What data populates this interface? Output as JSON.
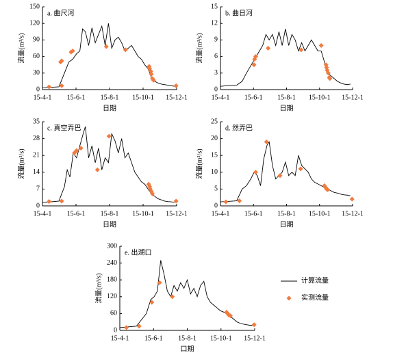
{
  "chart_data": [
    {
      "type": "line",
      "title": "a. 曲尺河",
      "xlabel": "日期",
      "ylabel": "流量(m³/s)",
      "xlim": [
        0,
        244
      ],
      "xticks": [
        {
          "value": 0,
          "label": "15-4-1"
        },
        {
          "value": 61,
          "label": "15-6-1"
        },
        {
          "value": 122,
          "label": "15-8-1"
        },
        {
          "value": 183,
          "label": "15-10-1"
        },
        {
          "value": 244,
          "label": "15-12-1"
        }
      ],
      "ylim": [
        0,
        150
      ],
      "yticks": [
        0,
        30,
        60,
        90,
        120,
        150
      ],
      "series": [
        {
          "type": "line",
          "color": "#000000",
          "x": [
            0,
            12,
            30,
            40,
            48,
            55,
            62,
            68,
            73,
            78,
            84,
            90,
            96,
            102,
            108,
            114,
            120,
            126,
            132,
            138,
            144,
            150,
            156,
            162,
            168,
            174,
            180,
            186,
            192,
            198,
            204,
            210,
            216,
            222,
            228,
            234,
            240
          ],
          "values": [
            3,
            4,
            5,
            30,
            50,
            55,
            65,
            70,
            110,
            105,
            80,
            112,
            85,
            100,
            115,
            80,
            120,
            75,
            90,
            95,
            85,
            70,
            75,
            80,
            70,
            60,
            55,
            45,
            38,
            22,
            15,
            12,
            10,
            9,
            8,
            7,
            6
          ]
        },
        {
          "type": "scatter",
          "color": "#f07b3f",
          "x": [
            12,
            35,
            33,
            35,
            52,
            55,
            116,
            151,
            194,
            195,
            197,
            198,
            200,
            202,
            243
          ],
          "values": [
            5,
            7,
            50,
            52,
            68,
            70,
            78,
            72,
            42,
            38,
            33,
            28,
            20,
            17,
            7
          ]
        }
      ]
    },
    {
      "type": "line",
      "title": "b. 曲日河",
      "xlabel": "日期",
      "ylabel": "流量(m³/s)",
      "xlim": [
        0,
        244
      ],
      "xticks": [
        {
          "value": 0,
          "label": "15-4-1"
        },
        {
          "value": 61,
          "label": "15-6-1"
        },
        {
          "value": 122,
          "label": "15-8-1"
        },
        {
          "value": 183,
          "label": "15-10-1"
        },
        {
          "value": 244,
          "label": "15-12-1"
        }
      ],
      "ylim": [
        0,
        15
      ],
      "yticks": [
        0,
        3,
        6,
        9,
        12,
        15
      ],
      "series": [
        {
          "type": "line",
          "color": "#000000",
          "x": [
            0,
            12,
            30,
            40,
            48,
            60,
            66,
            72,
            78,
            84,
            90,
            96,
            102,
            108,
            114,
            120,
            126,
            132,
            138,
            144,
            150,
            156,
            162,
            168,
            174,
            180,
            186,
            192,
            198,
            204,
            210,
            216,
            222,
            228,
            234,
            240
          ],
          "values": [
            0.6,
            0.7,
            0.8,
            1.5,
            3,
            5,
            6,
            7,
            8,
            10,
            9,
            10,
            8,
            10.5,
            8,
            11,
            8,
            10,
            9,
            7,
            8.5,
            7,
            8,
            9,
            8,
            7,
            7,
            5,
            3,
            2.5,
            2,
            1.5,
            1.2,
            1,
            0.9,
            1
          ]
        },
        {
          "type": "scatter",
          "color": "#f07b3f",
          "x": [
            62,
            63,
            65,
            88,
            149,
            186,
            195,
            196,
            197,
            199,
            201,
            202
          ],
          "values": [
            4.5,
            5.5,
            6,
            7.5,
            7.2,
            8,
            4.5,
            4,
            3.5,
            3,
            2.2,
            2
          ]
        }
      ]
    },
    {
      "type": "line",
      "title": "c. 真空弄巴",
      "xlabel": "日期",
      "ylabel": "流量(m³/s)",
      "xlim": [
        0,
        244
      ],
      "xticks": [
        {
          "value": 0,
          "label": "15-4-1"
        },
        {
          "value": 61,
          "label": "15-6-1"
        },
        {
          "value": 122,
          "label": "15-8-1"
        },
        {
          "value": 183,
          "label": "15-10-1"
        },
        {
          "value": 244,
          "label": "15-12-1"
        }
      ],
      "ylim": [
        0,
        35
      ],
      "yticks": [
        0,
        7,
        14,
        21,
        28,
        35
      ],
      "series": [
        {
          "type": "line",
          "color": "#000000",
          "x": [
            0,
            12,
            30,
            40,
            45,
            50,
            56,
            62,
            68,
            74,
            78,
            84,
            90,
            96,
            102,
            108,
            114,
            120,
            126,
            132,
            138,
            144,
            150,
            156,
            162,
            168,
            174,
            180,
            186,
            192,
            198,
            204,
            210,
            216,
            222,
            228,
            234,
            240
          ],
          "values": [
            1.5,
            1.6,
            2,
            8,
            15,
            12,
            22,
            20,
            25,
            30,
            33,
            20,
            25,
            18,
            24,
            15,
            20,
            18,
            30,
            27,
            22,
            28,
            20,
            22,
            18,
            14,
            12,
            10,
            9,
            7,
            5,
            4,
            3,
            2.5,
            2,
            1.8,
            1.7,
            1.5
          ]
        },
        {
          "type": "scatter",
          "color": "#f07b3f",
          "x": [
            12,
            35,
            58,
            62,
            70,
            100,
            121,
            193,
            195,
            196,
            198,
            200,
            243
          ],
          "values": [
            1.8,
            2,
            22,
            23,
            24,
            15,
            29,
            9,
            8,
            7,
            6,
            5,
            2
          ]
        }
      ]
    },
    {
      "type": "line",
      "title": "d. 然弄巴",
      "xlabel": "日期",
      "ylabel": "流量(m³/s)",
      "xlim": [
        0,
        244
      ],
      "xticks": [
        {
          "value": 0,
          "label": "15-4-1"
        },
        {
          "value": 61,
          "label": "15-6-1"
        },
        {
          "value": 122,
          "label": "15-8-1"
        },
        {
          "value": 183,
          "label": "15-10-1"
        },
        {
          "value": 244,
          "label": "15-12-1"
        }
      ],
      "ylim": [
        0,
        25
      ],
      "yticks": [
        0,
        5,
        10,
        15,
        20,
        25
      ],
      "series": [
        {
          "type": "line",
          "color": "#000000",
          "x": [
            0,
            12,
            30,
            40,
            48,
            56,
            62,
            68,
            74,
            80,
            86,
            90,
            96,
            102,
            108,
            114,
            120,
            126,
            132,
            138,
            144,
            150,
            156,
            162,
            168,
            174,
            180,
            186,
            192,
            198,
            204,
            210,
            216,
            222,
            228,
            234,
            240
          ],
          "values": [
            1.2,
            1.3,
            1.5,
            5,
            6,
            8,
            10,
            9,
            6,
            14,
            18,
            19,
            12,
            8,
            9,
            10,
            13,
            9,
            10,
            9,
            15,
            12,
            11,
            10,
            8,
            7,
            6.5,
            6,
            5.5,
            5,
            4.5,
            4,
            3.8,
            3.5,
            3.3,
            3.2,
            3
          ]
        },
        {
          "type": "scatter",
          "color": "#f07b3f",
          "x": [
            10,
            35,
            65,
            85,
            110,
            148,
            192,
            194,
            196,
            198,
            243
          ],
          "values": [
            1.2,
            1.5,
            10,
            19,
            9,
            11,
            6,
            5.5,
            5,
            4.8,
            2
          ]
        }
      ]
    },
    {
      "type": "line",
      "title": "e. 出湖口",
      "xlabel": "口期",
      "ylabel": "流量(m³/s)",
      "legend": "right",
      "xlim": [
        0,
        244
      ],
      "xticks": [
        {
          "value": 0,
          "label": "15-4-1"
        },
        {
          "value": 61,
          "label": "15-6-1"
        },
        {
          "value": 122,
          "label": "15-8-1"
        },
        {
          "value": 183,
          "label": "15-10-1"
        },
        {
          "value": 244,
          "label": "15-12-1"
        }
      ],
      "ylim": [
        0,
        300
      ],
      "yticks": [
        0,
        60,
        120,
        180,
        240,
        300
      ],
      "series": [
        {
          "type": "line",
          "name": "计算流量",
          "color": "#000000",
          "x": [
            0,
            12,
            30,
            40,
            48,
            56,
            62,
            68,
            74,
            80,
            86,
            92,
            98,
            104,
            110,
            116,
            122,
            128,
            134,
            140,
            146,
            152,
            158,
            164,
            170,
            176,
            182,
            188,
            194,
            200,
            206,
            212,
            218,
            224,
            230,
            236,
            240
          ],
          "values": [
            10,
            12,
            15,
            40,
            60,
            110,
            120,
            140,
            250,
            200,
            140,
            120,
            160,
            140,
            170,
            150,
            180,
            130,
            150,
            120,
            160,
            175,
            120,
            100,
            90,
            80,
            70,
            65,
            60,
            50,
            40,
            30,
            25,
            22,
            20,
            18,
            18
          ]
        },
        {
          "type": "scatter",
          "name": "实测流量",
          "color": "#f07b3f",
          "x": [
            12,
            35,
            58,
            72,
            95,
            193,
            195,
            197,
            200,
            243
          ],
          "values": [
            10,
            15,
            100,
            170,
            120,
            65,
            60,
            55,
            52,
            20
          ]
        }
      ]
    }
  ]
}
